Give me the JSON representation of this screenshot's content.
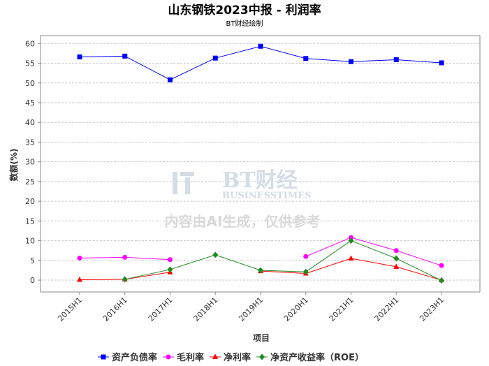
{
  "chart_data": {
    "type": "line",
    "title": "山东钢铁2023中报 - 利润率",
    "subtitle": "BT财经绘制",
    "xlabel": "项目",
    "ylabel": "数额(%)",
    "ylim": [
      -3,
      62
    ],
    "yticks": [
      0,
      5,
      10,
      15,
      20,
      25,
      30,
      35,
      40,
      45,
      50,
      55,
      60
    ],
    "grid": true,
    "legend_position": "bottom",
    "categories": [
      "2015H1",
      "2016H1",
      "2017H1",
      "2018H1",
      "2019H1",
      "2020H1",
      "2021H1",
      "2022H1",
      "2023H1"
    ],
    "series": [
      {
        "name": "资产负债率",
        "color": "#0000ff",
        "marker": "square",
        "values": [
          56.6,
          56.8,
          50.8,
          56.3,
          59.3,
          56.2,
          55.4,
          55.9,
          55.1
        ]
      },
      {
        "name": "毛利率",
        "color": "#ff00ff",
        "marker": "circle",
        "values": [
          5.6,
          5.8,
          5.2,
          null,
          null,
          6.0,
          10.8,
          7.5,
          3.7
        ]
      },
      {
        "name": "净利率",
        "color": "#ff0000",
        "marker": "triangle",
        "values": [
          0.1,
          0.2,
          2.0,
          null,
          2.3,
          1.7,
          5.5,
          3.4,
          0.0
        ]
      },
      {
        "name": "净资产收益率（ROE）",
        "color": "#228b22",
        "marker": "diamond",
        "values": [
          null,
          0.2,
          2.7,
          6.4,
          2.5,
          2.1,
          10.0,
          5.5,
          -0.1
        ]
      }
    ]
  },
  "watermark": {
    "logo": "BT财经",
    "sub": "BUSINESSTIMES",
    "notice": "内容由AI生成，仅供参考"
  }
}
